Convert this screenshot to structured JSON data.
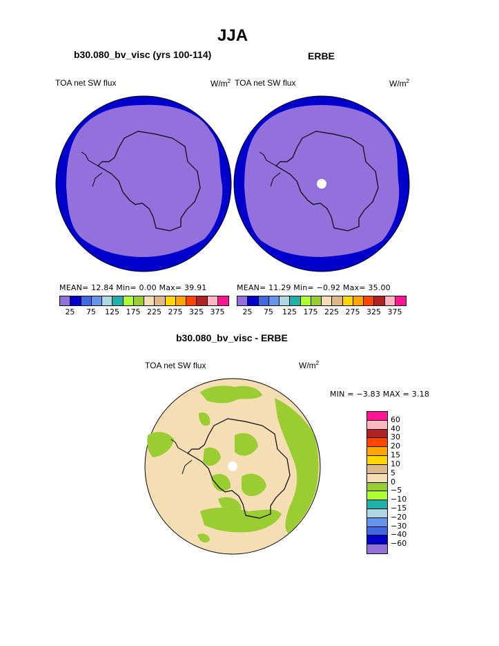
{
  "page": {
    "title": "JJA",
    "left_panel_title": "b30.080_bv_visc (yrs 100-114)",
    "right_panel_title": "ERBE",
    "diff_title": "b30.080_bv_visc - ERBE"
  },
  "panels": {
    "left": {
      "var_label": "TOA net SW flux",
      "unit": "W/m",
      "unit_sup": "2",
      "stats": "MEAN=   12.84   Min=     0.00   Max=   39.91"
    },
    "right": {
      "var_label": "TOA net SW flux",
      "unit": "W/m",
      "unit_sup": "2",
      "stats": "MEAN=   11.29   Min=   −0.92   Max=   35.00"
    },
    "diff": {
      "var_label": "TOA net SW flux",
      "unit": "W/m",
      "unit_sup": "2",
      "minmax": "MIN =  −3.83  MAX =    3.18"
    }
  },
  "chart_data": [
    {
      "type": "heatmap",
      "title": "b30.080_bv_visc (yrs 100-114)",
      "projection": "south polar stereographic",
      "levels": [
        "25",
        "75",
        "125",
        "175",
        "225",
        "275",
        "325",
        "375"
      ],
      "colors": [
        "#9370DB",
        "#0000CD",
        "#4169E1",
        "#6495ED",
        "#ADD8E6",
        "#20B2AA",
        "#ADFF2F",
        "#9ACD32",
        "#F5DEB3",
        "#DEB887",
        "#FFD700",
        "#FFA500",
        "#FF4500",
        "#B22222",
        "#FFB6C1",
        "#FF1493"
      ],
      "mean": 12.84,
      "min": 0.0,
      "max": 39.91
    },
    {
      "type": "heatmap",
      "title": "ERBE",
      "projection": "south polar stereographic",
      "levels": [
        "25",
        "75",
        "125",
        "175",
        "225",
        "275",
        "325",
        "375"
      ],
      "colors": [
        "#9370DB",
        "#0000CD",
        "#4169E1",
        "#6495ED",
        "#ADD8E6",
        "#20B2AA",
        "#ADFF2F",
        "#9ACD32",
        "#F5DEB3",
        "#DEB887",
        "#FFD700",
        "#FFA500",
        "#FF4500",
        "#B22222",
        "#FFB6C1",
        "#FF1493"
      ],
      "mean": 11.29,
      "min": -0.92,
      "max": 35.0
    },
    {
      "type": "heatmap",
      "title": "b30.080_bv_visc - ERBE",
      "projection": "south polar stereographic",
      "levels": [
        "60",
        "40",
        "30",
        "20",
        "15",
        "10",
        "5",
        "0",
        "−5",
        "−10",
        "−15",
        "−20",
        "−30",
        "−40",
        "−60"
      ],
      "colors": [
        "#FF1493",
        "#FFB6C1",
        "#B22222",
        "#FF4500",
        "#FFA500",
        "#FFD700",
        "#DEB887",
        "#F5DEB3",
        "#9ACD32",
        "#ADFF2F",
        "#20B2AA",
        "#ADD8E6",
        "#6495ED",
        "#4169E1",
        "#0000CD",
        "#9370DB"
      ],
      "min": -3.83,
      "max": 3.18
    }
  ]
}
